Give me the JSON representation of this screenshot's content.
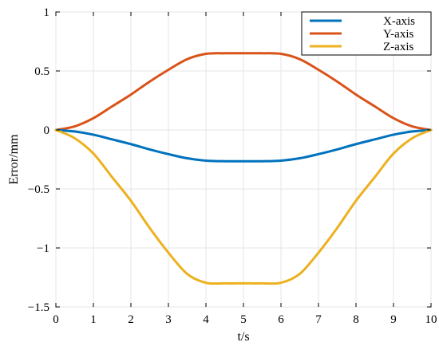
{
  "chart_data": {
    "type": "line",
    "xlabel": "t/s",
    "ylabel": "Error/mm",
    "xlim": [
      0,
      10
    ],
    "ylim": [
      -1.5,
      1
    ],
    "x_ticks": [
      0,
      1,
      2,
      3,
      4,
      5,
      6,
      7,
      8,
      9,
      10
    ],
    "y_ticks": [
      1,
      0.5,
      0,
      -0.5,
      -1,
      -1.5
    ],
    "y_tick_labels": [
      "1",
      "0.5",
      "0",
      "−0.5",
      "−1",
      "−1.5"
    ],
    "grid": true,
    "legend_position": "top-right",
    "x": [
      0,
      0.5,
      1,
      1.5,
      2,
      2.5,
      3,
      3.5,
      4,
      4.5,
      5,
      5.5,
      6,
      6.5,
      7,
      7.5,
      8,
      8.5,
      9,
      9.5,
      10
    ],
    "series": [
      {
        "name": "X-axis",
        "color": "#0072BD",
        "values": [
          0,
          -0.013,
          -0.04,
          -0.08,
          -0.12,
          -0.165,
          -0.205,
          -0.24,
          -0.26,
          -0.265,
          -0.265,
          -0.265,
          -0.26,
          -0.24,
          -0.205,
          -0.165,
          -0.12,
          -0.08,
          -0.04,
          -0.013,
          0
        ]
      },
      {
        "name": "Y-axis",
        "color": "#D95319",
        "values": [
          0,
          0.03,
          0.1,
          0.2,
          0.3,
          0.41,
          0.51,
          0.6,
          0.645,
          0.65,
          0.65,
          0.65,
          0.645,
          0.6,
          0.51,
          0.41,
          0.3,
          0.2,
          0.1,
          0.03,
          0
        ]
      },
      {
        "name": "Z-axis",
        "color": "#EDB120",
        "values": [
          0,
          -0.07,
          -0.2,
          -0.4,
          -0.6,
          -0.83,
          -1.04,
          -1.22,
          -1.295,
          -1.3,
          -1.3,
          -1.3,
          -1.295,
          -1.22,
          -1.04,
          -0.83,
          -0.6,
          -0.4,
          -0.2,
          -0.07,
          0
        ]
      }
    ]
  }
}
